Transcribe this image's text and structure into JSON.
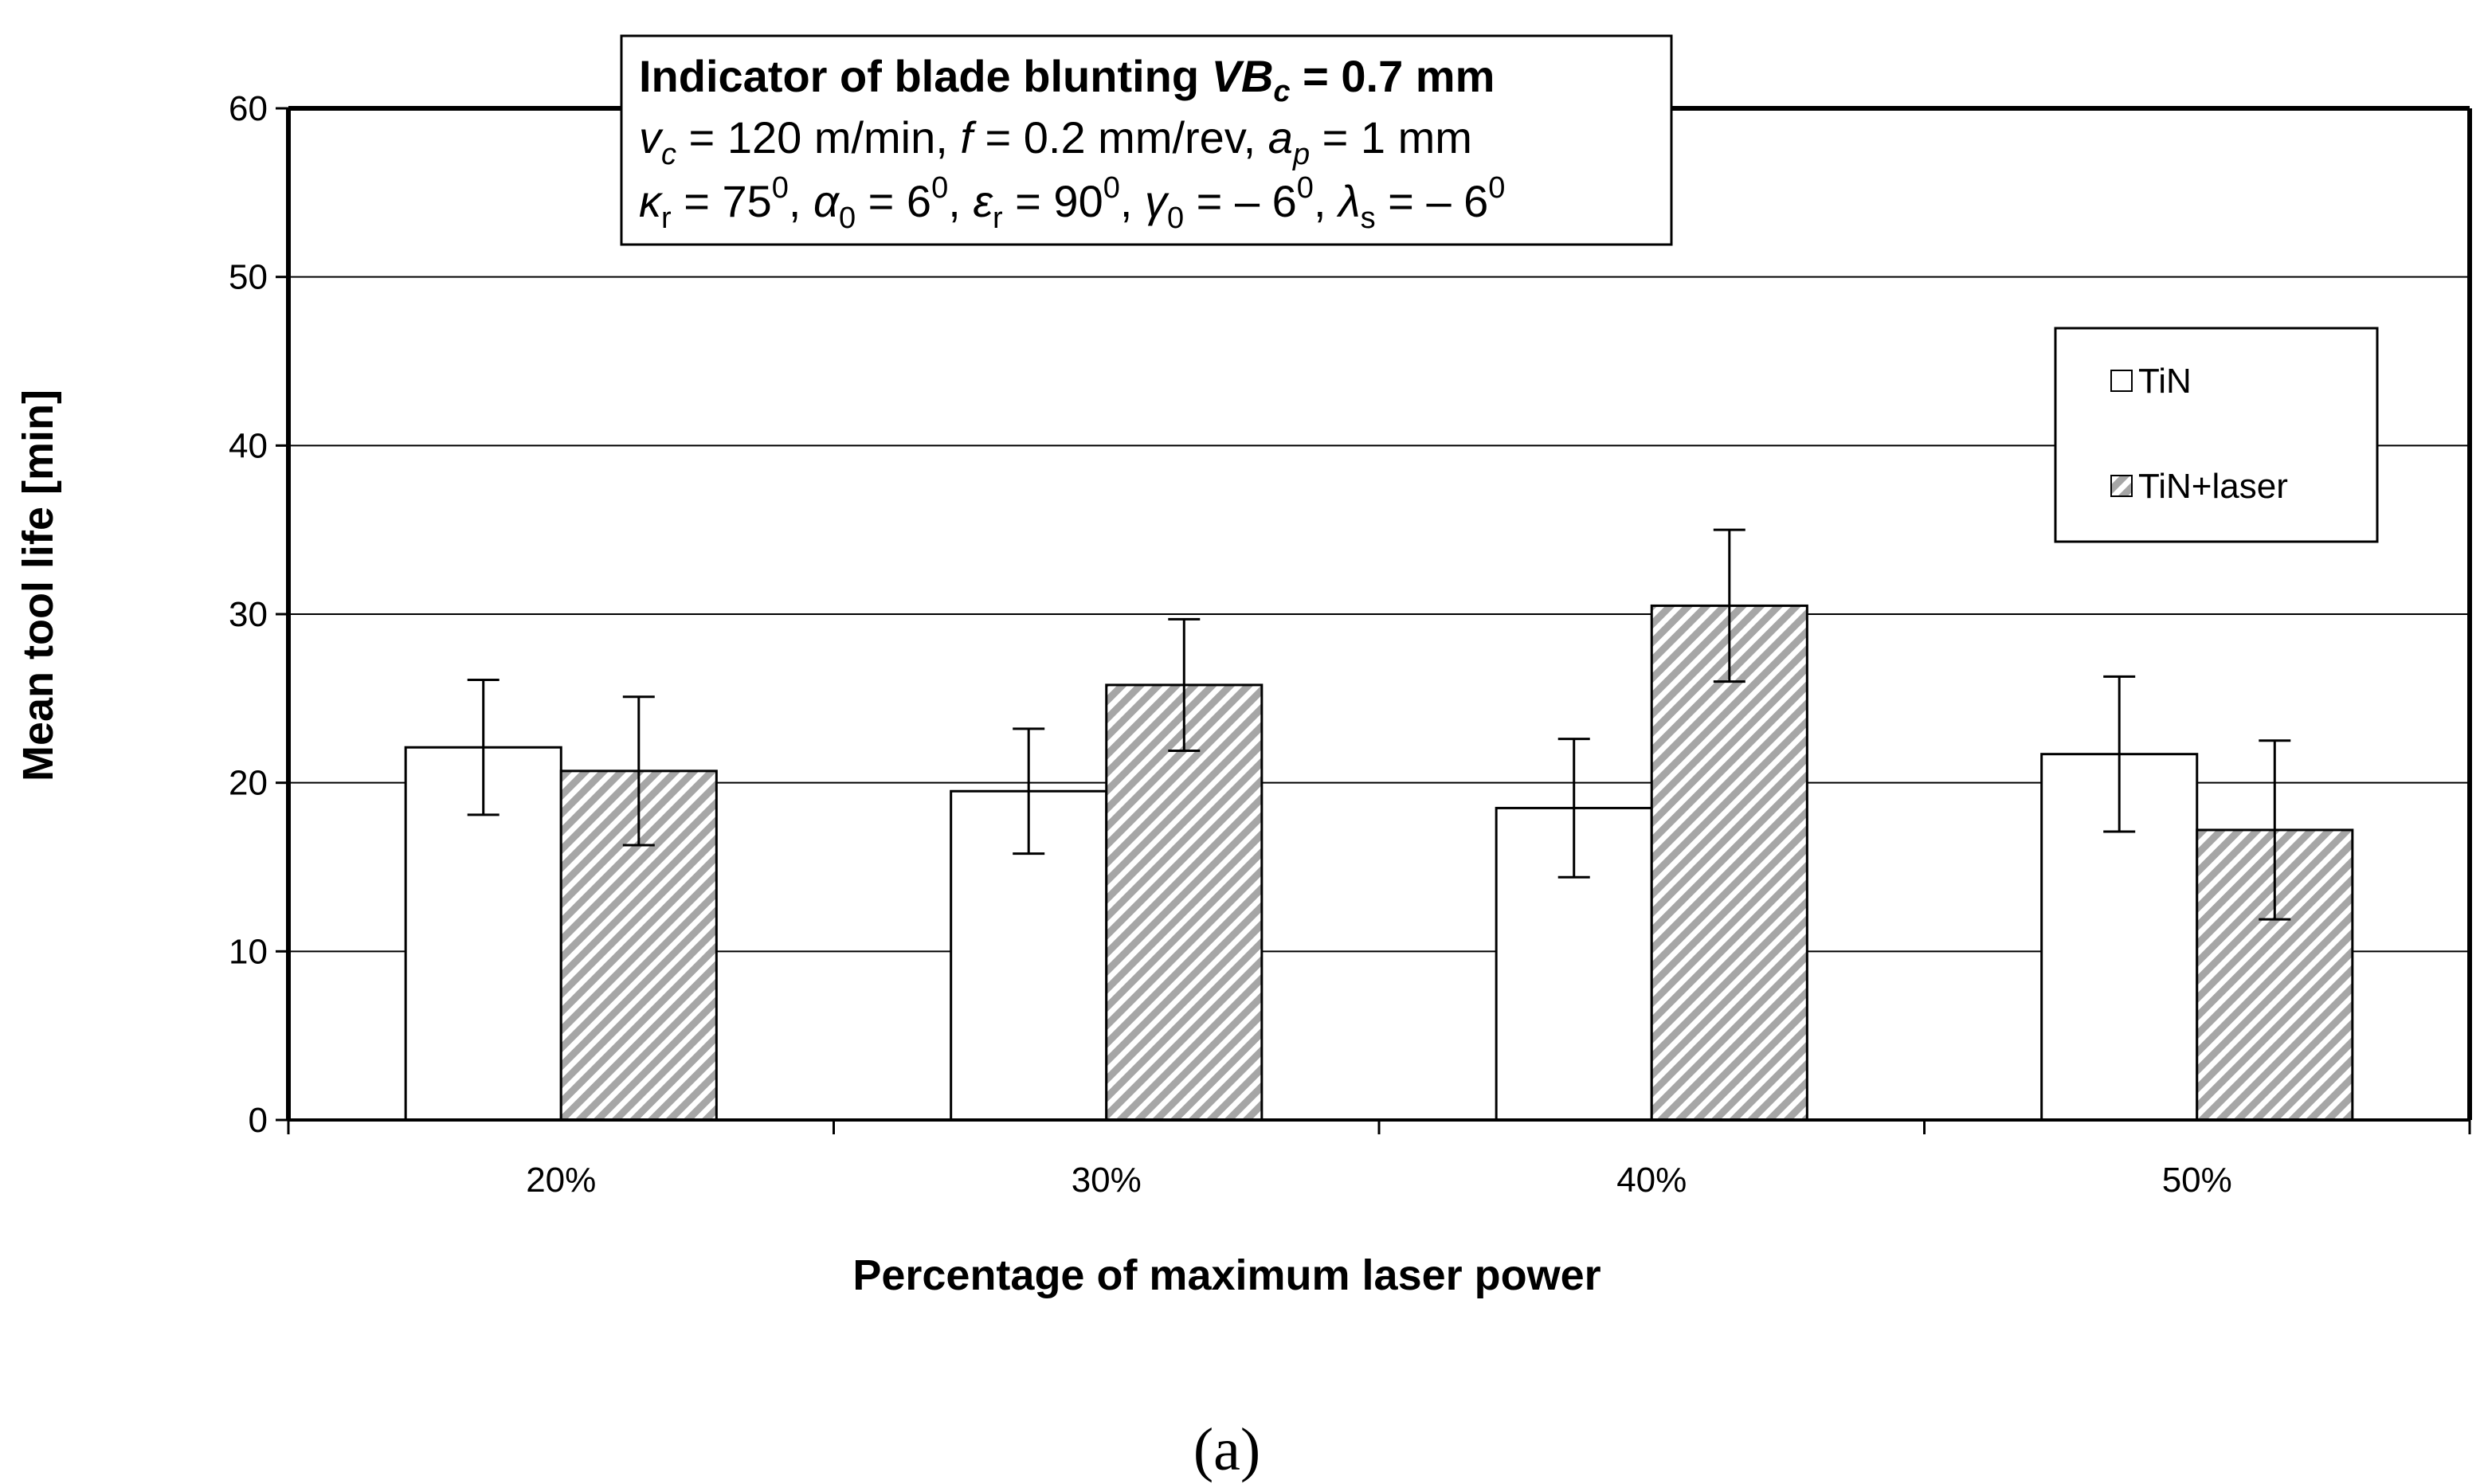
{
  "chart_data": {
    "type": "bar",
    "categories": [
      "20%",
      "30%",
      "40%",
      "50%"
    ],
    "series": [
      {
        "name": "TiN",
        "values": [
          22.1,
          19.5,
          18.5,
          21.7
        ],
        "error": [
          4.0,
          3.7,
          4.1,
          4.6
        ],
        "fill": "#ffffff"
      },
      {
        "name": "TiN+laser",
        "values": [
          20.7,
          25.8,
          30.5,
          17.2
        ],
        "error": [
          4.4,
          3.9,
          4.5,
          5.3
        ],
        "fill": "hatched"
      }
    ],
    "xlabel": "Percentage of maximum laser power",
    "ylabel": "Mean tool life [min]",
    "ylim": [
      0,
      60
    ],
    "yticks": [
      "0",
      "10",
      "20",
      "30",
      "40",
      "50",
      "60"
    ],
    "grid": true,
    "legend_position": "top-right",
    "annotation": {
      "title_prefix": "Indicator of blade blunting ",
      "title_var": "VB",
      "title_sub": "c",
      "title_suffix": " = 0.7 mm",
      "line2": [
        {
          "t": "v",
          "i": true
        },
        {
          "t": "c",
          "sub": true,
          "i": true
        },
        {
          "t": " = 120 m/min, "
        },
        {
          "t": "f",
          "i": true
        },
        {
          "t": " = 0.2 mm/rev, "
        },
        {
          "t": "a",
          "i": true
        },
        {
          "t": "p",
          "sub": true,
          "i": true
        },
        {
          "t": " = 1 mm"
        }
      ],
      "line3": [
        {
          "t": "κ",
          "i": true
        },
        {
          "t": "r",
          "sub": true
        },
        {
          "t": " = 75"
        },
        {
          "t": "0",
          "sup": true
        },
        {
          "t": ", "
        },
        {
          "t": "α",
          "i": true
        },
        {
          "t": "0",
          "sub": true
        },
        {
          "t": " = 6"
        },
        {
          "t": "0",
          "sup": true
        },
        {
          "t": ", "
        },
        {
          "t": "ε",
          "i": true
        },
        {
          "t": "r",
          "sub": true
        },
        {
          "t": " = 90"
        },
        {
          "t": "0",
          "sup": true
        },
        {
          "t": ", "
        },
        {
          "t": "γ",
          "i": true
        },
        {
          "t": "0",
          "sub": true
        },
        {
          "t": " = – 6"
        },
        {
          "t": "0",
          "sup": true
        },
        {
          "t": ", "
        },
        {
          "t": "λ",
          "i": true
        },
        {
          "t": "s",
          "sub": true
        },
        {
          "t": " = – 6"
        },
        {
          "t": "0",
          "sup": true
        }
      ]
    }
  },
  "caption": "(a)"
}
